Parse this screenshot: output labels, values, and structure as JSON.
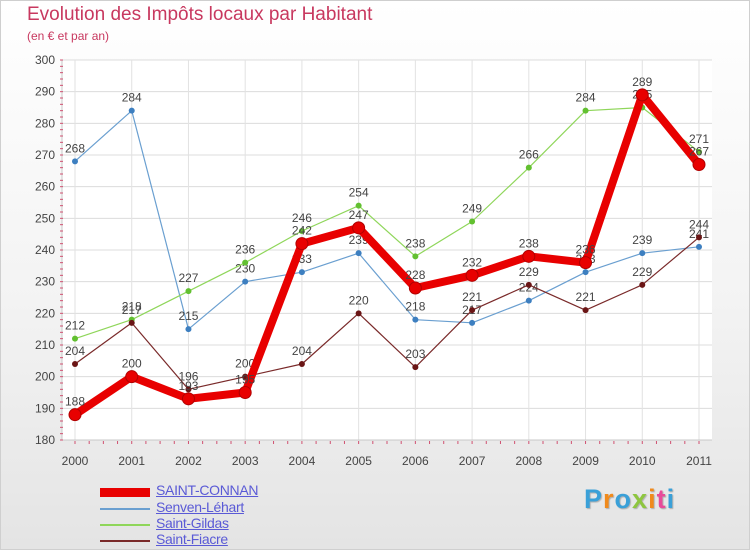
{
  "title": "Evolution des Impôts locaux par Habitant",
  "subtitle": "(en € et par an)",
  "logo": {
    "text": "Proxiti",
    "letters": [
      "P",
      "r",
      "o",
      "x",
      "i",
      "t",
      "i"
    ],
    "colors": [
      "#3aa0d8",
      "#f08a1c",
      "#3aa0d8",
      "#8ec63f",
      "#f08a1c",
      "#e84b9a",
      "#3aa0d8"
    ]
  },
  "chart_data": {
    "type": "line",
    "title": "Evolution des Impôts locaux par Habitant",
    "subtitle": "(en € et par an)",
    "xlabel": "",
    "ylabel": "",
    "categories": [
      "2000",
      "2001",
      "2002",
      "2003",
      "2004",
      "2005",
      "2006",
      "2007",
      "2008",
      "2009",
      "2010",
      "2011"
    ],
    "ylim": [
      180,
      300
    ],
    "yticks": [
      180,
      190,
      200,
      210,
      220,
      230,
      240,
      250,
      260,
      270,
      280,
      290,
      300
    ],
    "grid": true,
    "legend_position": "bottom-left",
    "series": [
      {
        "name": "Senven-Léhart",
        "color": "#6a9fd0",
        "marker": "#3d7fc0",
        "width": 1.2,
        "values": [
          268,
          284,
          215,
          230,
          233,
          239,
          218,
          217,
          224,
          233,
          239,
          241
        ]
      },
      {
        "name": "Saint-Gildas",
        "color": "#8fd65a",
        "marker": "#62c030",
        "width": 1.2,
        "values": [
          212,
          218,
          227,
          236,
          246,
          254,
          238,
          249,
          266,
          284,
          285,
          271
        ]
      },
      {
        "name": "Saint-Fiacre",
        "color": "#7a2a2a",
        "marker": "#6a1515",
        "width": 1.2,
        "values": [
          204,
          217,
          196,
          200,
          204,
          220,
          203,
          221,
          229,
          221,
          229,
          244
        ]
      },
      {
        "name": "SAINT-CONNAN",
        "color": "#e80000",
        "marker": "#e80000",
        "width": 8,
        "values": [
          188,
          200,
          193,
          195,
          242,
          247,
          228,
          232,
          238,
          236,
          289,
          267
        ]
      }
    ],
    "data_labels": {
      "Senven-Léhart": [
        "268",
        "284",
        "215",
        "230",
        "233",
        "239",
        "218",
        "217",
        "224",
        "233",
        "239",
        "241"
      ],
      "Saint-Gildas": [
        "212",
        "218",
        "227",
        "236",
        "246",
        "254",
        "238",
        "249",
        "266",
        "284",
        "285",
        "271"
      ],
      "Saint-Fiacre": [
        "204",
        "217",
        "196",
        "200",
        "204",
        "220",
        "203",
        "221",
        "229",
        "221",
        "229",
        "244"
      ],
      "SAINT-CONNAN": [
        "188",
        "200",
        "193",
        "195",
        "242",
        "247",
        "228",
        "232",
        "238",
        "236",
        "289",
        "267"
      ]
    }
  },
  "legend": [
    {
      "name": "SAINT-CONNAN",
      "color": "#e80000",
      "thick": true
    },
    {
      "name": "Senven-Léhart",
      "color": "#6a9fd0",
      "thick": false
    },
    {
      "name": "Saint-Gildas",
      "color": "#8fd65a",
      "thick": false
    },
    {
      "name": "Saint-Fiacre",
      "color": "#7a2a2a",
      "thick": false
    }
  ]
}
